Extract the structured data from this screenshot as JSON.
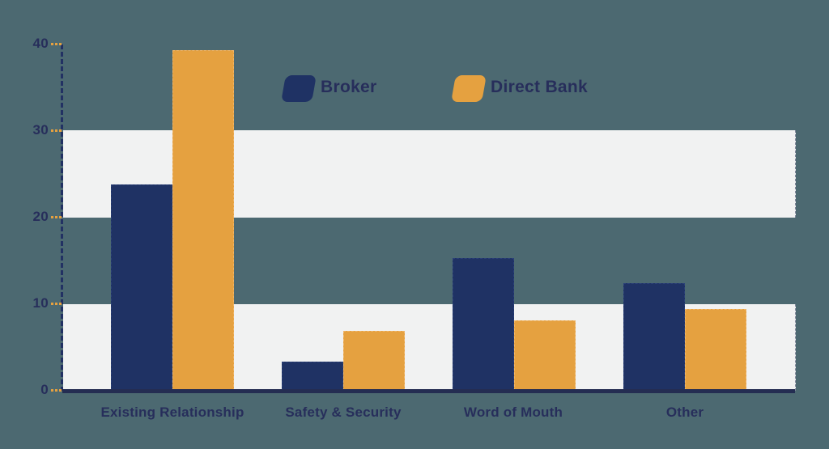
{
  "chart_data": {
    "type": "bar",
    "categories": [
      "Existing Relationship",
      "Safety & Security",
      "Word of Mouth",
      "Other"
    ],
    "series": [
      {
        "name": "Broker",
        "color": "#1f3264",
        "edge_color": "#2b4078",
        "values": [
          23.8,
          3.4,
          15.3,
          12.4
        ]
      },
      {
        "name": "Direct Bank",
        "color": "#e5a140",
        "edge_color": "#f0b568",
        "values": [
          39.3,
          6.9,
          8.1,
          9.4
        ]
      }
    ],
    "ylim": [
      0,
      40
    ],
    "yticks": [
      40,
      30,
      20,
      10,
      0
    ],
    "xlabel": "",
    "ylabel": "",
    "grid": "alternating light horizontal bands covering value ranges 0-10 and 20-30",
    "legend_position": "top-center",
    "colors": {
      "background": "#4c6971",
      "band": "#f1f2f2",
      "axis_line": "#223163",
      "baseline": "#242d52",
      "tick_marks": "#e5a140",
      "text": "#272e5b"
    }
  }
}
